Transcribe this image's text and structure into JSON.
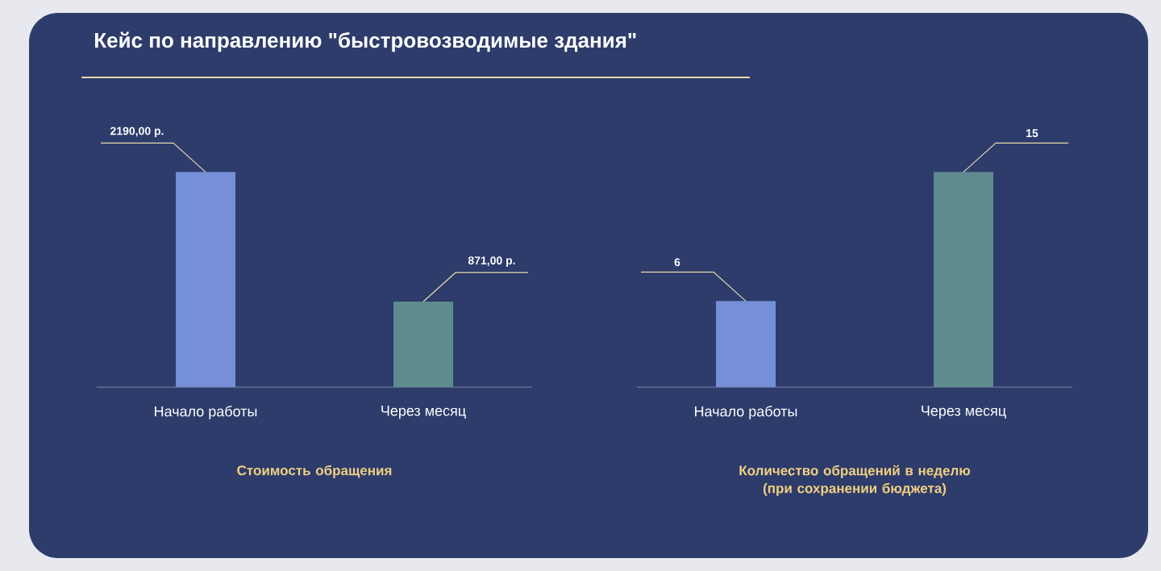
{
  "chart_data": [
    {
      "type": "bar",
      "title": "Кейс по направлению \"быстровозводимые здания\"",
      "categories": [
        "Начало работы",
        "Через месяц"
      ],
      "values": [
        2190,
        871
      ],
      "value_labels": [
        "2190,00 р.",
        "871,00 р."
      ],
      "colors": [
        "#7590d6",
        "#5f8b8e"
      ],
      "xlabel": "Стоимость обращения"
    },
    {
      "type": "bar",
      "categories": [
        "Начало работы",
        "Через месяц"
      ],
      "values": [
        6,
        15
      ],
      "value_labels": [
        "6",
        "15"
      ],
      "colors": [
        "#7590d6",
        "#5f8b8e"
      ],
      "xlabel": "Количество обращений в неделю (при сохранении бюджета)"
    }
  ]
}
